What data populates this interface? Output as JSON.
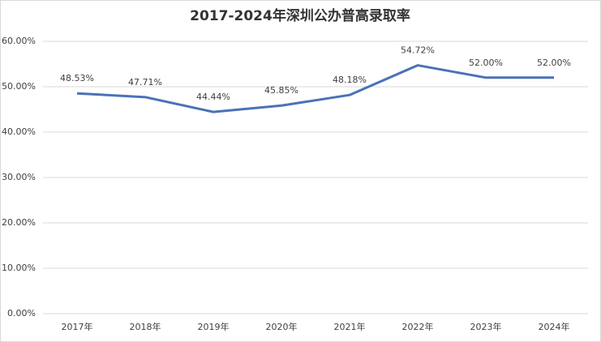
{
  "chart_data": {
    "type": "line",
    "title": "2017-2024年深圳公办普高录取率",
    "categories": [
      "2017年",
      "2018年",
      "2019年",
      "2020年",
      "2021年",
      "2022年",
      "2023年",
      "2024年"
    ],
    "series": [
      {
        "color": "#4a72b8",
        "values": [
          48.53,
          47.71,
          44.44,
          45.85,
          48.18,
          54.72,
          52.0,
          52.0
        ],
        "value_labels": [
          "48.53%",
          "47.71%",
          "44.44%",
          "45.85%",
          "48.18%",
          "54.72%",
          "52.00%",
          "52.00%"
        ]
      }
    ],
    "ylim": [
      0,
      60
    ],
    "yticks": [
      {
        "value": 0,
        "label": "0.00%"
      },
      {
        "value": 10,
        "label": "10.00%"
      },
      {
        "value": 20,
        "label": "20.00%"
      },
      {
        "value": 30,
        "label": "30.00%"
      },
      {
        "value": 40,
        "label": "40.00%"
      },
      {
        "value": 50,
        "label": "50.00%"
      },
      {
        "value": 60,
        "label": "60.00%"
      }
    ],
    "grid": true
  }
}
